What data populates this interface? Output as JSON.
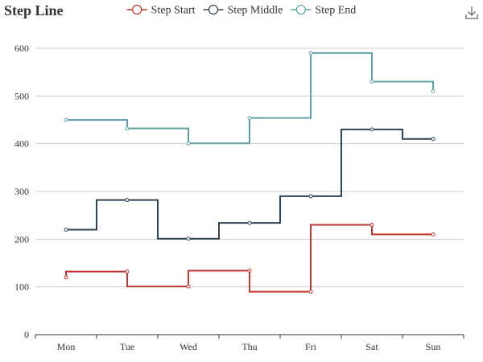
{
  "colors": {
    "series": [
      "#c23531",
      "#2f4554",
      "#61a0a8"
    ],
    "grid": "#cccccc",
    "axis": "#333333"
  },
  "toolbox": {
    "icon": "download-icon"
  },
  "chart_data": {
    "type": "line",
    "title": "Step Line",
    "xlabel": "",
    "ylabel": "",
    "categories": [
      "Mon",
      "Tue",
      "Wed",
      "Thu",
      "Fri",
      "Sat",
      "Sun"
    ],
    "ylim": [
      0,
      600
    ],
    "yticks": [
      0,
      100,
      200,
      300,
      400,
      500,
      600
    ],
    "grid": true,
    "legend": "top-center",
    "series": [
      {
        "name": "Step Start",
        "step": "start",
        "values": [
          120,
          132,
          101,
          134,
          90,
          230,
          210
        ]
      },
      {
        "name": "Step Middle",
        "step": "middle",
        "values": [
          220,
          282,
          201,
          234,
          290,
          430,
          410
        ]
      },
      {
        "name": "Step End",
        "step": "end",
        "values": [
          450,
          432,
          401,
          454,
          590,
          530,
          510
        ]
      }
    ]
  }
}
